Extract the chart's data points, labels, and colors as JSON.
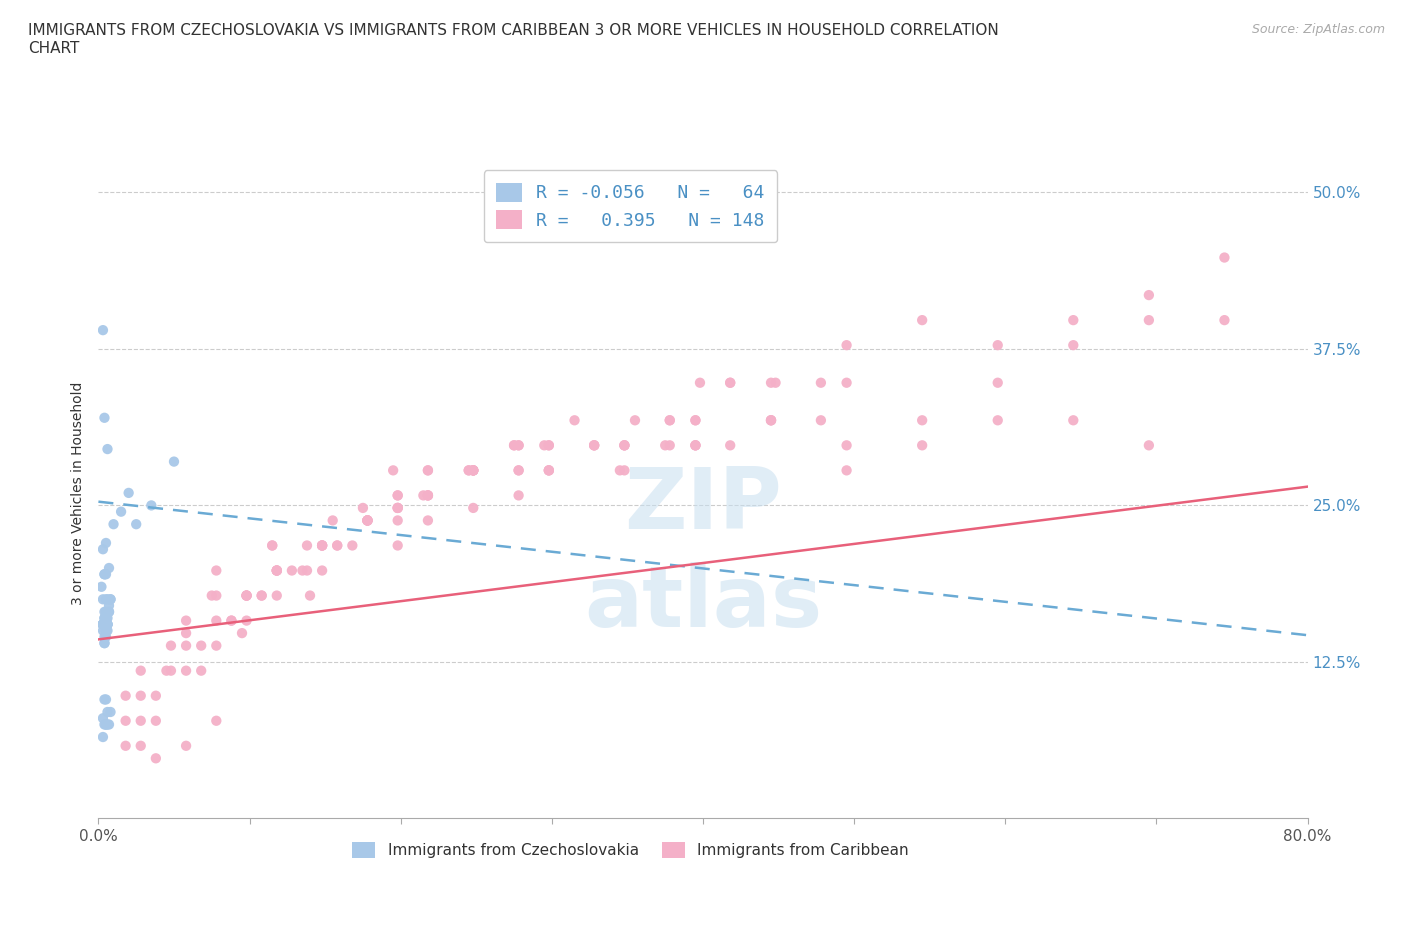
{
  "title": "IMMIGRANTS FROM CZECHOSLOVAKIA VS IMMIGRANTS FROM CARIBBEAN 3 OR MORE VEHICLES IN HOUSEHOLD CORRELATION\nCHART",
  "source": "Source: ZipAtlas.com",
  "ylabel": "3 or more Vehicles in Household",
  "legend_label_1": "Immigrants from Czechoslovakia",
  "legend_label_2": "Immigrants from Caribbean",
  "R1": -0.056,
  "N1": 64,
  "R2": 0.395,
  "N2": 148,
  "color1": "#a8c8e8",
  "color2": "#f4b0c8",
  "line_color1": "#6aaad4",
  "line_color2": "#e8607a",
  "xlim": [
    0.0,
    0.8
  ],
  "ylim": [
    0.0,
    0.52
  ],
  "xticks": [
    0.0,
    0.1,
    0.2,
    0.3,
    0.4,
    0.5,
    0.6,
    0.7,
    0.8
  ],
  "xticklabels": [
    "0.0%",
    "",
    "",
    "",
    "",
    "",
    "",
    "",
    "80.0%"
  ],
  "yticks_left": [
    0.0,
    0.125,
    0.25,
    0.375,
    0.5
  ],
  "yticks_right": [
    0.125,
    0.25,
    0.375,
    0.5
  ],
  "yticklabels_right": [
    "12.5%",
    "25.0%",
    "37.5%",
    "50.0%"
  ],
  "grid_yticks": [
    0.125,
    0.25,
    0.375,
    0.5
  ],
  "trend1_x0": 0.0,
  "trend1_y0": 0.253,
  "trend1_x1": 0.3,
  "trend1_y1": 0.213,
  "trend2_x0": 0.0,
  "trend2_y0": 0.143,
  "trend2_x1": 0.8,
  "trend2_y1": 0.265,
  "scatter1_x": [
    0.006,
    0.004,
    0.003,
    0.008,
    0.002,
    0.005,
    0.003,
    0.005,
    0.007,
    0.004,
    0.006,
    0.005,
    0.004,
    0.007,
    0.003,
    0.006,
    0.004,
    0.003,
    0.005,
    0.004,
    0.003,
    0.006,
    0.004,
    0.005,
    0.003,
    0.004,
    0.006,
    0.003,
    0.005,
    0.006,
    0.004,
    0.005,
    0.003,
    0.007,
    0.004,
    0.005,
    0.006,
    0.003,
    0.05,
    0.035,
    0.015,
    0.02,
    0.025,
    0.01,
    0.008,
    0.007,
    0.006,
    0.005,
    0.004,
    0.003,
    0.005,
    0.004,
    0.003,
    0.005,
    0.003,
    0.004,
    0.005,
    0.003,
    0.006,
    0.004,
    0.007,
    0.005,
    0.006,
    0.008
  ],
  "scatter1_y": [
    0.295,
    0.32,
    0.215,
    0.175,
    0.185,
    0.16,
    0.175,
    0.22,
    0.2,
    0.195,
    0.175,
    0.195,
    0.155,
    0.165,
    0.155,
    0.16,
    0.16,
    0.155,
    0.175,
    0.195,
    0.155,
    0.155,
    0.165,
    0.16,
    0.155,
    0.16,
    0.155,
    0.155,
    0.165,
    0.155,
    0.155,
    0.16,
    0.155,
    0.17,
    0.095,
    0.145,
    0.15,
    0.15,
    0.285,
    0.25,
    0.245,
    0.26,
    0.235,
    0.235,
    0.175,
    0.165,
    0.155,
    0.15,
    0.145,
    0.155,
    0.15,
    0.14,
    0.39,
    0.075,
    0.065,
    0.075,
    0.095,
    0.08,
    0.085,
    0.14,
    0.075,
    0.075,
    0.075,
    0.085
  ],
  "scatter2_x": [
    0.018,
    0.045,
    0.075,
    0.028,
    0.095,
    0.14,
    0.048,
    0.078,
    0.115,
    0.058,
    0.038,
    0.068,
    0.088,
    0.108,
    0.135,
    0.028,
    0.058,
    0.078,
    0.115,
    0.155,
    0.175,
    0.195,
    0.215,
    0.245,
    0.275,
    0.295,
    0.315,
    0.345,
    0.375,
    0.395,
    0.148,
    0.178,
    0.198,
    0.218,
    0.245,
    0.275,
    0.098,
    0.118,
    0.138,
    0.158,
    0.178,
    0.198,
    0.248,
    0.298,
    0.348,
    0.395,
    0.445,
    0.495,
    0.545,
    0.595,
    0.645,
    0.695,
    0.058,
    0.078,
    0.098,
    0.118,
    0.148,
    0.178,
    0.198,
    0.218,
    0.248,
    0.278,
    0.048,
    0.068,
    0.088,
    0.108,
    0.128,
    0.148,
    0.168,
    0.198,
    0.218,
    0.248,
    0.278,
    0.298,
    0.328,
    0.355,
    0.378,
    0.398,
    0.418,
    0.448,
    0.058,
    0.038,
    0.028,
    0.018,
    0.078,
    0.098,
    0.118,
    0.138,
    0.158,
    0.178,
    0.198,
    0.218,
    0.248,
    0.278,
    0.298,
    0.348,
    0.395,
    0.445,
    0.495,
    0.545,
    0.595,
    0.645,
    0.695,
    0.745,
    0.098,
    0.118,
    0.148,
    0.178,
    0.198,
    0.218,
    0.248,
    0.278,
    0.298,
    0.328,
    0.348,
    0.378,
    0.395,
    0.418,
    0.445,
    0.478,
    0.495,
    0.545,
    0.595,
    0.645,
    0.695,
    0.745,
    0.098,
    0.118,
    0.148,
    0.178,
    0.198,
    0.218,
    0.248,
    0.278,
    0.298,
    0.328,
    0.348,
    0.378,
    0.395,
    0.418,
    0.445,
    0.478,
    0.495,
    0.018,
    0.038,
    0.058,
    0.078,
    0.028,
    0.048,
    0.068,
    0.088,
    0.108
  ],
  "scatter2_y": [
    0.098,
    0.118,
    0.178,
    0.078,
    0.148,
    0.178,
    0.138,
    0.198,
    0.218,
    0.158,
    0.098,
    0.118,
    0.158,
    0.178,
    0.198,
    0.118,
    0.148,
    0.178,
    0.218,
    0.238,
    0.248,
    0.278,
    0.258,
    0.278,
    0.298,
    0.298,
    0.318,
    0.278,
    0.298,
    0.298,
    0.218,
    0.238,
    0.258,
    0.278,
    0.278,
    0.298,
    0.178,
    0.198,
    0.218,
    0.218,
    0.238,
    0.248,
    0.278,
    0.278,
    0.298,
    0.298,
    0.318,
    0.278,
    0.298,
    0.318,
    0.318,
    0.298,
    0.138,
    0.158,
    0.178,
    0.198,
    0.218,
    0.238,
    0.258,
    0.278,
    0.278,
    0.298,
    0.118,
    0.138,
    0.158,
    0.178,
    0.198,
    0.198,
    0.218,
    0.238,
    0.258,
    0.278,
    0.278,
    0.298,
    0.298,
    0.318,
    0.318,
    0.348,
    0.348,
    0.348,
    0.118,
    0.078,
    0.098,
    0.058,
    0.138,
    0.158,
    0.178,
    0.198,
    0.218,
    0.238,
    0.248,
    0.258,
    0.278,
    0.298,
    0.278,
    0.298,
    0.318,
    0.318,
    0.298,
    0.318,
    0.348,
    0.378,
    0.398,
    0.398,
    0.178,
    0.198,
    0.218,
    0.238,
    0.248,
    0.258,
    0.278,
    0.278,
    0.298,
    0.298,
    0.298,
    0.318,
    0.318,
    0.348,
    0.348,
    0.348,
    0.378,
    0.398,
    0.378,
    0.398,
    0.418,
    0.448,
    0.178,
    0.198,
    0.218,
    0.238,
    0.218,
    0.238,
    0.248,
    0.258,
    0.278,
    0.298,
    0.278,
    0.298,
    0.298,
    0.298,
    0.318,
    0.318,
    0.348,
    0.078,
    0.048,
    0.058,
    0.078,
    0.058,
    0.078,
    0.098,
    0.058,
    0.078
  ]
}
